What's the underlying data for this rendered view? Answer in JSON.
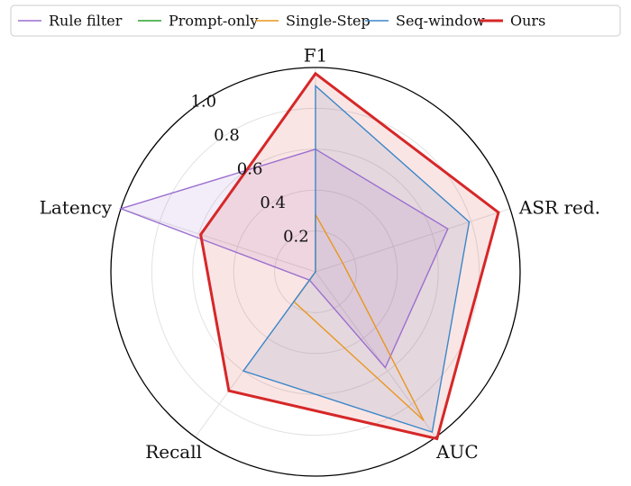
{
  "chart_data": {
    "type": "radar",
    "axes": [
      "F1",
      "ASR red.",
      "AUC",
      "Recall",
      "Latency"
    ],
    "rlim": [
      0,
      1.0
    ],
    "rticks": [
      0.2,
      0.4,
      0.6,
      0.8,
      1.0
    ],
    "tick_labels": [
      "0.2",
      "0.4",
      "0.6",
      "0.8",
      "1.0"
    ],
    "grid": true,
    "legend_position": "top",
    "series": [
      {
        "name": "Rule filter",
        "color": "#9b6fcf",
        "fill": true,
        "width": 1.4,
        "values": [
          0.6,
          0.68,
          0.58,
          0.05,
          1.0
        ]
      },
      {
        "name": "Prompt-only",
        "color": "#2ca02c",
        "fill": false,
        "width": 1.4,
        "values": [
          0.0,
          0.0,
          0.0,
          0.0,
          0.0
        ]
      },
      {
        "name": "Single-Step",
        "color": "#e8961e",
        "fill": false,
        "width": 1.4,
        "values": [
          0.28,
          0.14,
          0.9,
          0.18,
          0.0
        ]
      },
      {
        "name": "Seq-window",
        "color": "#3a87c8",
        "fill": true,
        "width": 1.4,
        "values": [
          0.91,
          0.79,
          0.97,
          0.6,
          0.0
        ]
      },
      {
        "name": "Ours",
        "color": "#d62728",
        "fill": true,
        "width": 3.0,
        "values": [
          0.97,
          0.94,
          1.01,
          0.72,
          0.59
        ]
      }
    ]
  }
}
